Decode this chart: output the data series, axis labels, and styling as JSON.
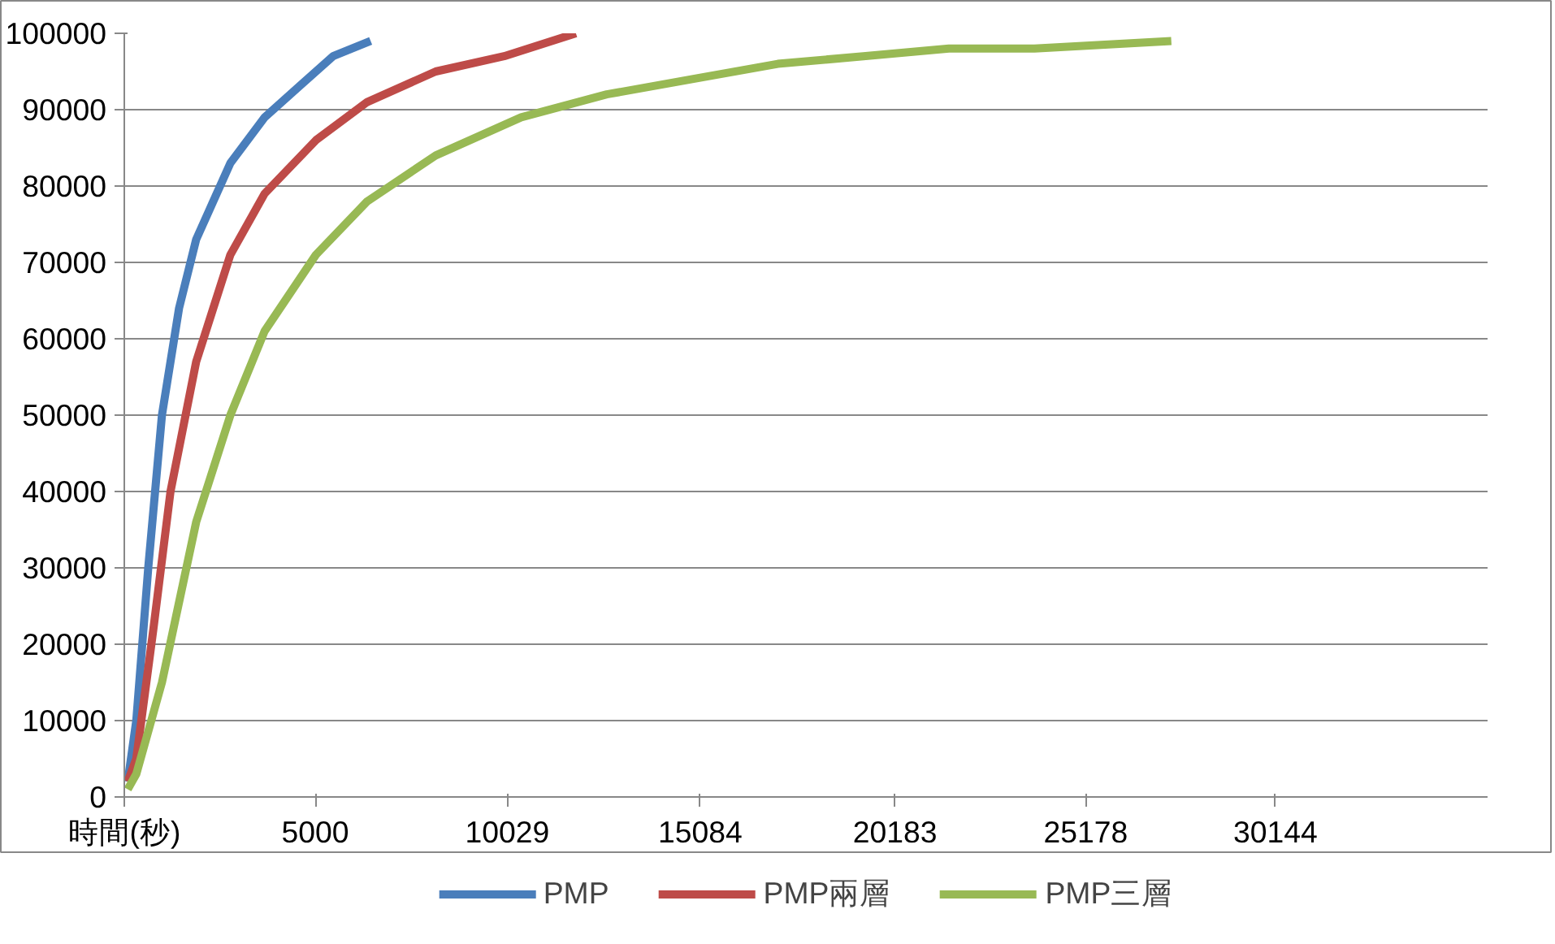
{
  "chart_data": {
    "type": "line",
    "xlim": [
      0,
      35700
    ],
    "xticks": [
      {
        "value": 0,
        "label": "時間(秒)"
      },
      5000,
      10029,
      15084,
      20183,
      25178,
      30144
    ],
    "ylim": [
      0,
      100000
    ],
    "yticks": [
      0,
      10000,
      20000,
      30000,
      40000,
      50000,
      60000,
      70000,
      80000,
      90000,
      100000
    ],
    "grid": "y",
    "legend": "bottom",
    "line_style": "solid",
    "marker": "none",
    "series": [
      {
        "name": "PMP",
        "color": "#4a7ebb",
        "x": [
          90,
          314,
          627,
          986,
          1434,
          1882,
          2778,
          3674,
          4570,
          5466,
          6451
        ],
        "values": [
          2000,
          10000,
          30000,
          50000,
          64000,
          73000,
          83000,
          89000,
          93000,
          97000,
          99000
        ]
      },
      {
        "name": "PMP兩層",
        "color": "#be4b48",
        "x": [
          90,
          314,
          762,
          1210,
          1882,
          2778,
          3674,
          5018,
          6362,
          8154,
          9946,
          11827
        ],
        "values": [
          2000,
          5000,
          22000,
          40000,
          57000,
          71000,
          79000,
          86000,
          91000,
          95000,
          97000,
          100000
        ]
      },
      {
        "name": "PMP三層",
        "color": "#98b954",
        "x": [
          90,
          314,
          986,
          1882,
          2778,
          3674,
          5018,
          6362,
          8154,
          10394,
          12634,
          14874,
          17114,
          19354,
          21594,
          23834,
          27418
        ],
        "values": [
          1000,
          3000,
          15000,
          36000,
          50000,
          61000,
          71000,
          78000,
          84000,
          89000,
          92000,
          94000,
          96000,
          97000,
          98000,
          98000,
          99000
        ]
      }
    ]
  }
}
